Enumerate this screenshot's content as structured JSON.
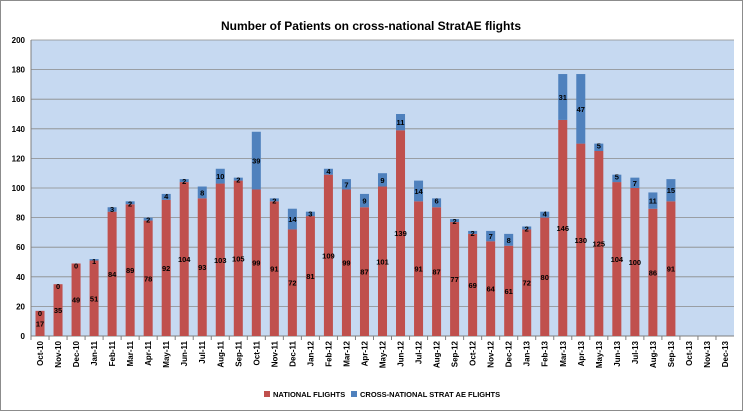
{
  "chart_data": {
    "type": "bar",
    "stacked": true,
    "title": "Number of Patients on cross-national StratAE flights",
    "xlabel": "",
    "ylabel": "",
    "ylim": [
      0,
      200
    ],
    "yticks": [
      0,
      20,
      40,
      60,
      80,
      100,
      120,
      140,
      160,
      180,
      200
    ],
    "grid": true,
    "legend_position": "bottom",
    "categories": [
      "Oct-10",
      "Nov-10",
      "Dec-10",
      "Jan-11",
      "Feb-11",
      "Mar-11",
      "Apr-11",
      "May-11",
      "Jun-11",
      "Jul-11",
      "Aug-11",
      "Sep-11",
      "Oct-11",
      "Nov-11",
      "Dec-11",
      "Jan-12",
      "Feb-12",
      "Mar-12",
      "Apr-12",
      "May-12",
      "Jun-12",
      "Jul-12",
      "Aug-12",
      "Sep-12",
      "Oct-12",
      "Nov-12",
      "Dec-12",
      "Jan-13",
      "Feb-13",
      "Mar-13",
      "Apr-13",
      "May-13",
      "Jun-13",
      "Jul-13",
      "Aug-13",
      "Sep-13",
      "Oct-13",
      "Nov-13",
      "Dec-13"
    ],
    "series": [
      {
        "name": "NATIONAL FLIGHTS",
        "color": "#c0504d",
        "values": [
          17,
          35,
          49,
          51,
          84,
          89,
          78,
          92,
          104,
          93,
          103,
          105,
          99,
          91,
          72,
          81,
          109,
          99,
          87,
          101,
          139,
          91,
          87,
          77,
          69,
          64,
          61,
          72,
          80,
          146,
          130,
          125,
          104,
          100,
          86,
          91,
          null,
          null,
          null
        ]
      },
      {
        "name": "CROSS-NATIONAL STRAT AE FLIGHTS",
        "color": "#4f81bd",
        "values": [
          0,
          0,
          0,
          1,
          3,
          2,
          2,
          4,
          2,
          8,
          10,
          2,
          39,
          2,
          14,
          3,
          4,
          7,
          9,
          9,
          11,
          14,
          6,
          2,
          2,
          7,
          8,
          2,
          4,
          31,
          47,
          5,
          5,
          7,
          11,
          15,
          null,
          null,
          null
        ]
      }
    ]
  },
  "style": {
    "plot_background": "#c6d9f1",
    "gridline_color": "#8a8a8a"
  }
}
